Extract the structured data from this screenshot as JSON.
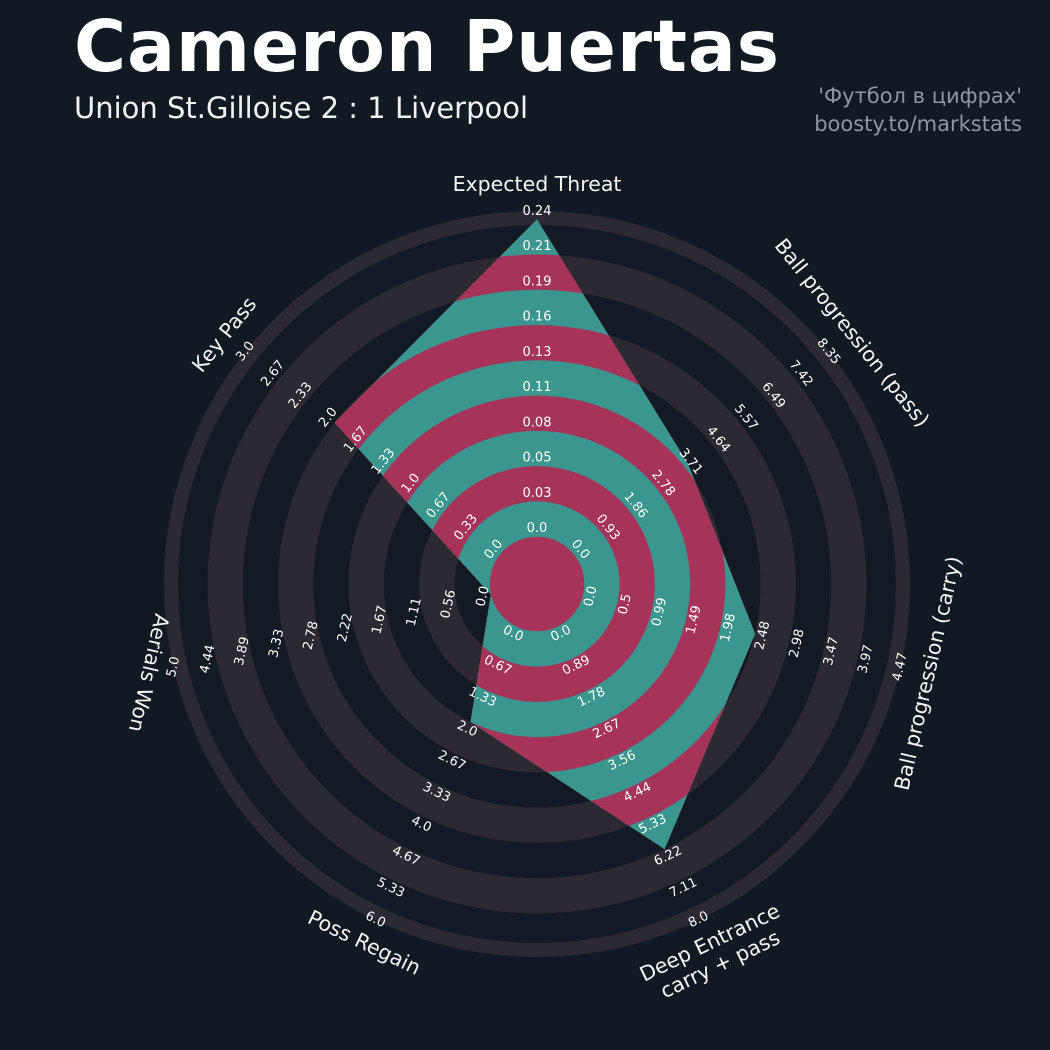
{
  "header": {
    "title": "Cameron Puertas",
    "subtitle": "Union St.Gilloise 2 : 1 Liverpool",
    "watermark_line1": "'Футбол в цифрах'",
    "watermark_line2": "boosty.to/markstats"
  },
  "chart_data": {
    "type": "radar",
    "title": "Cameron Puertas",
    "subtitle": "Union St.Gilloise 2 : 1 Liverpool",
    "legend_position": "none",
    "grid": "concentric-rings",
    "axes": [
      {
        "label": "Expected Threat",
        "ticks": [
          "0.0",
          "0.03",
          "0.05",
          "0.08",
          "0.11",
          "0.13",
          "0.16",
          "0.19",
          "0.21",
          "0.24"
        ],
        "range": [
          0.0,
          0.24
        ],
        "value": 0.24,
        "value_tick_pos": 9
      },
      {
        "label": "Ball progression (pass)",
        "ticks": [
          "0.0",
          "0.93",
          "1.86",
          "2.78",
          "3.71",
          "4.64",
          "5.57",
          "6.49",
          "7.42",
          "8.35"
        ],
        "range": [
          0.0,
          8.35
        ],
        "value": 3.8,
        "value_tick_pos": 4.13
      },
      {
        "label": "Ball progression (carry)",
        "ticks": [
          "0.0",
          "0.5",
          "0.99",
          "1.49",
          "1.98",
          "2.48",
          "2.98",
          "3.47",
          "3.97",
          "4.47"
        ],
        "range": [
          0.0,
          4.47
        ],
        "value": 2.48,
        "value_tick_pos": 5
      },
      {
        "label": "Deep Entrance carry + pass",
        "label_lines": [
          "Deep Entrance",
          "carry + pass"
        ],
        "ticks": [
          "0.0",
          "0.89",
          "1.78",
          "2.67",
          "3.56",
          "4.44",
          "5.33",
          "6.22",
          "7.11",
          "8.0"
        ],
        "range": [
          0.0,
          8.0
        ],
        "value": 6.22,
        "value_tick_pos": 7
      },
      {
        "label": "Poss Regain",
        "ticks": [
          "0.0",
          "0.67",
          "1.33",
          "2.0",
          "2.67",
          "3.33",
          "4.0",
          "4.67",
          "5.33",
          "6.0"
        ],
        "range": [
          0.0,
          6.0
        ],
        "value": 2.0,
        "value_tick_pos": 3
      },
      {
        "label": "Aerials Won",
        "ticks": [
          "0.0",
          "0.56",
          "1.11",
          "1.67",
          "2.22",
          "2.78",
          "3.33",
          "3.89",
          "4.44",
          "5.0"
        ],
        "range": [
          0.0,
          5.0
        ],
        "value": 0.0,
        "value_tick_pos": 0
      },
      {
        "label": "Key Pass",
        "ticks": [
          "0.0",
          "0.33",
          "0.67",
          "1.0",
          "1.33",
          "1.67",
          "2.0",
          "2.33",
          "2.67",
          "3.0"
        ],
        "range": [
          0.0,
          3.0
        ],
        "value": 2.0,
        "value_tick_pos": 6
      }
    ],
    "colors": {
      "background": "#111a23",
      "ring_dark": "#131a23",
      "ring_light": "#2c2933",
      "outer_ring_stroke": "#2c2933",
      "polygon_teal": "#3a968f",
      "polygon_magenta": "#a63459",
      "tick_text": "#ffffff",
      "axis_title_text": "#f5f5f5"
    }
  }
}
